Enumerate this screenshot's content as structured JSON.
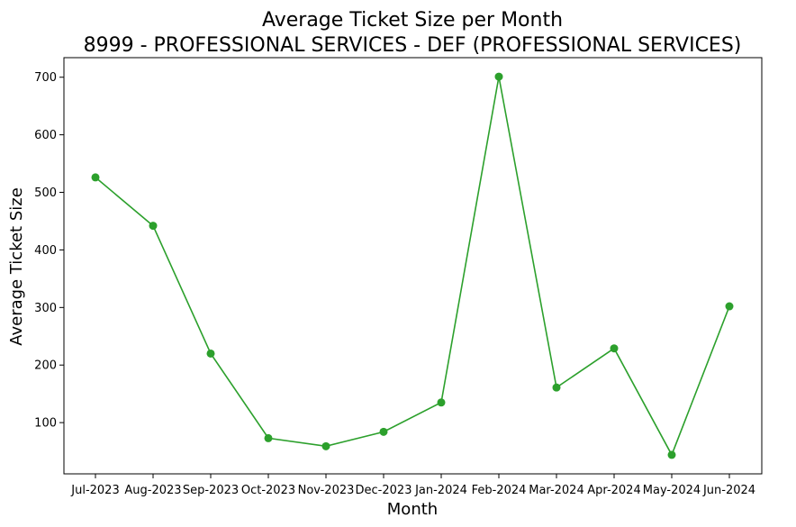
{
  "chart_data": {
    "type": "line",
    "title": "Average Ticket Size per Month",
    "subtitle": "8999 - PROFESSIONAL SERVICES - DEF (PROFESSIONAL SERVICES)",
    "xlabel": "Month",
    "ylabel": "Average Ticket Size",
    "categories": [
      "Jul-2023",
      "Aug-2023",
      "Sep-2023",
      "Oct-2023",
      "Nov-2023",
      "Dec-2023",
      "Jan-2024",
      "Feb-2024",
      "Mar-2024",
      "Apr-2024",
      "May-2024",
      "Jun-2024"
    ],
    "series": [
      {
        "values": [
          526,
          442,
          220,
          73,
          59,
          84,
          135,
          701,
          161,
          229,
          44,
          302
        ],
        "color": "#2ca02c",
        "marker": "circle"
      }
    ],
    "yticks": [
      100,
      200,
      300,
      400,
      500,
      600,
      700
    ],
    "ylim": [
      11,
      734
    ],
    "grid": false,
    "legend": "none"
  }
}
